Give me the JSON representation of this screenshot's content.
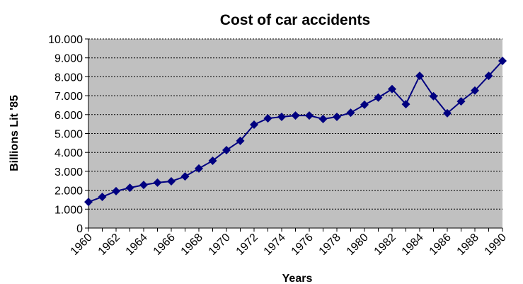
{
  "chart_data": {
    "type": "line",
    "title": "Cost of car accidents",
    "x_label": "Years",
    "y_label": "Billions Lit '85",
    "categories": [
      "1960",
      null,
      "1962",
      null,
      "1964",
      null,
      "1966",
      null,
      "1968",
      null,
      "1970",
      null,
      "1972",
      null,
      "1974",
      null,
      "1976",
      null,
      "1978",
      null,
      "1980",
      null,
      "1982",
      null,
      "1984",
      null,
      "1986",
      null,
      "1988",
      null,
      "1990"
    ],
    "series": [
      {
        "color": "#000080",
        "values": [
          1380,
          1650,
          1950,
          2130,
          2280,
          2400,
          2470,
          2730,
          3150,
          3560,
          4120,
          4610,
          5470,
          5800,
          5880,
          5950,
          5950,
          5770,
          5880,
          6100,
          6520,
          6900,
          7350,
          6550,
          8050,
          6970,
          6070,
          6700,
          7270,
          8050,
          8840
        ]
      }
    ],
    "ylim": [
      0,
      10000
    ],
    "yticks": [
      0,
      {
        "value": 1000,
        "label": "1.000"
      },
      {
        "value": 2000,
        "label": "2.000"
      },
      {
        "value": 3000,
        "label": "3.000"
      },
      {
        "value": 4000,
        "label": "4.000"
      },
      {
        "value": 5000,
        "label": "5.000"
      },
      {
        "value": 6000,
        "label": "6.000"
      },
      {
        "value": 7000,
        "label": "7.000"
      },
      {
        "value": 8000,
        "label": "8.000"
      },
      {
        "value": 9000,
        "label": "9.000"
      },
      {
        "value": 10000,
        "label": "10.000"
      }
    ],
    "grid": true,
    "plot_background": "#c0c0c0"
  }
}
